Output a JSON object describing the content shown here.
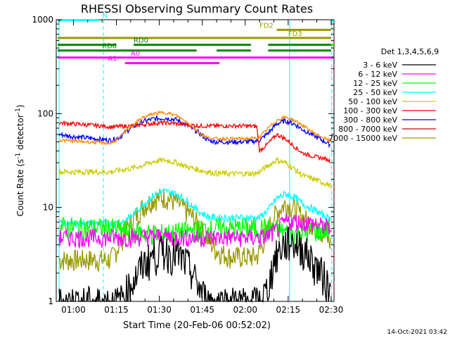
{
  "chart_data": {
    "type": "line",
    "title": "RHESSI Observing Summary Count Rates",
    "xlabel": "Start Time (20-Feb-06 00:52:02)",
    "ylabel": "Count Rate (s",
    "ylabel_sup": "-1",
    "ylabel_tail": " detector",
    "ylabel_end": ")",
    "x_unit": "minutes of day (UT)",
    "xlim": [
      54.0,
      151.0
    ],
    "ylim": [
      1,
      1000
    ],
    "yscale": "log",
    "x_ticks": [
      {
        "v": 60,
        "label": "01:00"
      },
      {
        "v": 75,
        "label": "01:15"
      },
      {
        "v": 90,
        "label": "01:30"
      },
      {
        "v": 105,
        "label": "01:45"
      },
      {
        "v": 120,
        "label": "02:00"
      },
      {
        "v": 135,
        "label": "02:15"
      },
      {
        "v": 150,
        "label": "02:30"
      }
    ],
    "y_ticks": [
      {
        "v": 1,
        "label": "1"
      },
      {
        "v": 10,
        "label": "10"
      },
      {
        "v": 100,
        "label": "100"
      },
      {
        "v": 1000,
        "label": "1000"
      }
    ],
    "legend_title": "Det 1,3,4,5,6,9",
    "legend_position": "right",
    "timestamp": "14-Oct-2021 03:42",
    "series": [
      {
        "name": "3 - 6 keV",
        "color": "#000000",
        "x": [
          55,
          73,
          76,
          79,
          82,
          84,
          88,
          92,
          96,
          100,
          104,
          107,
          112,
          116,
          120,
          124,
          125,
          128,
          130,
          133,
          136,
          140,
          144,
          148,
          150
        ],
        "y": [
          1,
          1,
          1,
          1.4,
          1.9,
          2.5,
          3.2,
          3.6,
          3.2,
          2.5,
          1.4,
          1,
          1,
          1,
          1,
          1,
          1,
          1.4,
          2.8,
          4.0,
          4.5,
          3.8,
          2.6,
          1.8,
          1.2
        ]
      },
      {
        "name": "6 - 12 keV",
        "color": "#ff00ff",
        "x": [
          55,
          60,
          65,
          70,
          73,
          76,
          80,
          85,
          90,
          95,
          100,
          105,
          110,
          115,
          120,
          125,
          128,
          131,
          134,
          137,
          140,
          143,
          146,
          150
        ],
        "y": [
          4.8,
          4.8,
          4.8,
          4.8,
          4.8,
          4.8,
          4.8,
          4.9,
          5.0,
          4.9,
          4.8,
          4.8,
          4.8,
          4.8,
          4.8,
          4.8,
          5.0,
          5.8,
          7.0,
          7.2,
          7.0,
          6.8,
          6.5,
          6.0
        ]
      },
      {
        "name": "12 - 25 keV",
        "color": "#00ff00",
        "x": [
          55,
          60,
          65,
          70,
          73,
          76,
          80,
          85,
          90,
          95,
          100,
          105,
          110,
          115,
          120,
          125,
          128,
          131,
          134,
          137,
          140,
          143,
          146,
          150
        ],
        "y": [
          6.2,
          6.2,
          6.1,
          6.1,
          6.0,
          5.9,
          5.6,
          5.4,
          5.2,
          5.4,
          5.6,
          5.9,
          6.0,
          6.0,
          6.1,
          6.1,
          6.0,
          5.8,
          5.5,
          5.3,
          5.4,
          5.6,
          5.8,
          6.0
        ]
      },
      {
        "name": "25 - 50 keV",
        "color": "#00ffff",
        "x": [
          55,
          60,
          65,
          70,
          73,
          76,
          80,
          84,
          88,
          92,
          96,
          100,
          104,
          107,
          110,
          115,
          120,
          124,
          125,
          128,
          131,
          134,
          137,
          140,
          144,
          148,
          150
        ],
        "y": [
          6.8,
          6.8,
          6.8,
          6.8,
          6.8,
          6.8,
          8.0,
          10.5,
          13.5,
          15.0,
          14.0,
          11.5,
          9.0,
          8.0,
          7.8,
          7.8,
          7.8,
          7.8,
          7.8,
          9.5,
          12.5,
          14.0,
          13.0,
          11.0,
          9.5,
          8.0,
          7.5
        ]
      },
      {
        "name": "50 - 100 keV",
        "color": "#cccc00",
        "x": [
          55,
          60,
          65,
          70,
          73,
          76,
          80,
          84,
          88,
          92,
          96,
          100,
          104,
          107,
          110,
          115,
          120,
          124,
          125,
          128,
          131,
          134,
          137,
          140,
          144,
          148,
          150
        ],
        "y": [
          24,
          24,
          24,
          24,
          24,
          25,
          26,
          28,
          31,
          32,
          30,
          27,
          25,
          24,
          23,
          23,
          23,
          23,
          24,
          28,
          32,
          30,
          26,
          22,
          20,
          18,
          17
        ]
      },
      {
        "name": "100 - 300 keV",
        "color": "#ff0000",
        "x": [
          55,
          60,
          65,
          70,
          73,
          76,
          80,
          84,
          88,
          92,
          96,
          100,
          104,
          107,
          110,
          115,
          120,
          124,
          125,
          128,
          131,
          134,
          137,
          140,
          144,
          148,
          150
        ],
        "y": [
          80,
          78,
          76,
          74,
          72,
          73,
          74,
          76,
          79,
          80,
          78,
          76,
          74,
          74,
          74,
          74,
          74,
          73,
          40,
          48,
          60,
          54,
          45,
          38,
          35,
          33,
          31
        ]
      },
      {
        "name": "300 - 800 keV",
        "color": "#0000ff",
        "x": [
          55,
          60,
          65,
          70,
          73,
          76,
          80,
          84,
          88,
          92,
          96,
          100,
          104,
          107,
          110,
          115,
          120,
          124,
          125,
          128,
          131,
          134,
          137,
          140,
          144,
          148,
          150
        ],
        "y": [
          60,
          57,
          55,
          53,
          52,
          56,
          70,
          82,
          88,
          90,
          86,
          74,
          62,
          52,
          50,
          50,
          50,
          51,
          52,
          62,
          78,
          84,
          78,
          68,
          58,
          50,
          46
        ]
      },
      {
        "name": "800 - 7000 keV",
        "color": "#cc0000",
        "x": [
          55,
          150
        ],
        "y": [
          1000,
          1000
        ]
      },
      {
        "name": "7000 - 15000 keV",
        "color": "#999900",
        "x": [
          55,
          60,
          65,
          70,
          73,
          76,
          78,
          80,
          84,
          88,
          92,
          96,
          100,
          104,
          106,
          110,
          115,
          120,
          124,
          126,
          128,
          131,
          134,
          137,
          140,
          144,
          148,
          150
        ],
        "y": [
          2.8,
          2.8,
          2.8,
          2.8,
          2.8,
          4.0,
          5.5,
          7.0,
          10.0,
          12.5,
          13.0,
          11.5,
          9.0,
          6.5,
          5.0,
          3.5,
          3.0,
          3.0,
          3.0,
          4.0,
          6.0,
          9.0,
          11.0,
          10.0,
          8.0,
          6.5,
          5.0,
          4.0
        ]
      }
    ],
    "orange_curve": {
      "color": "#ff8800",
      "x": [
        55,
        60,
        65,
        70,
        73,
        76,
        80,
        84,
        88,
        92,
        96,
        100,
        104,
        107,
        110,
        115,
        120,
        124,
        125,
        128,
        131,
        134,
        137,
        140,
        144,
        148,
        150
      ],
      "y": [
        52,
        51,
        50,
        49,
        48,
        55,
        73,
        90,
        100,
        103,
        95,
        80,
        62,
        55,
        54,
        54,
        54,
        55,
        56,
        70,
        85,
        92,
        85,
        75,
        62,
        54,
        50
      ]
    },
    "state_bars": [
      {
        "label": "N",
        "color": "#00ffff",
        "y": 990,
        "segments": [
          [
            54.5,
            69
          ]
        ],
        "label_x": 70
      },
      {
        "label": "FD2",
        "color": "#999900",
        "y": 780,
        "segments": [
          [
            131,
            150
          ]
        ],
        "label_x": 125
      },
      {
        "label": "FD3",
        "color": "#999900",
        "y": 640,
        "segments": [
          [
            54.5,
            150
          ]
        ],
        "label_x": 135
      },
      {
        "label": "RD0",
        "color": "#008800",
        "y": 540,
        "segments": [
          [
            54.5,
            75
          ],
          [
            81,
            122
          ],
          [
            128,
            150
          ]
        ],
        "label_x": 81
      },
      {
        "label": "RD6",
        "color": "#008800",
        "y": 470,
        "segments": [
          [
            54.5,
            103
          ],
          [
            110,
            122
          ],
          [
            128,
            150
          ]
        ],
        "label_x": 70
      },
      {
        "label": "A0",
        "color": "#ff00ff",
        "y": 395,
        "segments": [
          [
            54.5,
            150
          ]
        ],
        "label_x": 80
      },
      {
        "label": "A1",
        "color": "#ff00ff",
        "y": 345,
        "segments": [
          [
            78,
            111
          ]
        ],
        "label_x": 72
      }
    ],
    "ext_bars": [
      {
        "color": "#00ffff",
        "y": 970,
        "segments": [
          [
            150,
            151
          ]
        ]
      },
      {
        "color": "#ff00ff",
        "y": 395,
        "segments": [
          [
            150,
            151
          ]
        ]
      },
      {
        "color": "#00ff00",
        "y": 540,
        "segments": [
          [
            150,
            151
          ]
        ]
      }
    ],
    "vlines": [
      {
        "x": 55,
        "color": "#00ffff",
        "dash": false
      },
      {
        "x": 70.5,
        "color": "#00ffff",
        "dash": true
      },
      {
        "x": 135.5,
        "color": "#00ffff",
        "dash": false
      },
      {
        "x": 150.2,
        "color": "#00ffff",
        "dash": true
      }
    ]
  }
}
